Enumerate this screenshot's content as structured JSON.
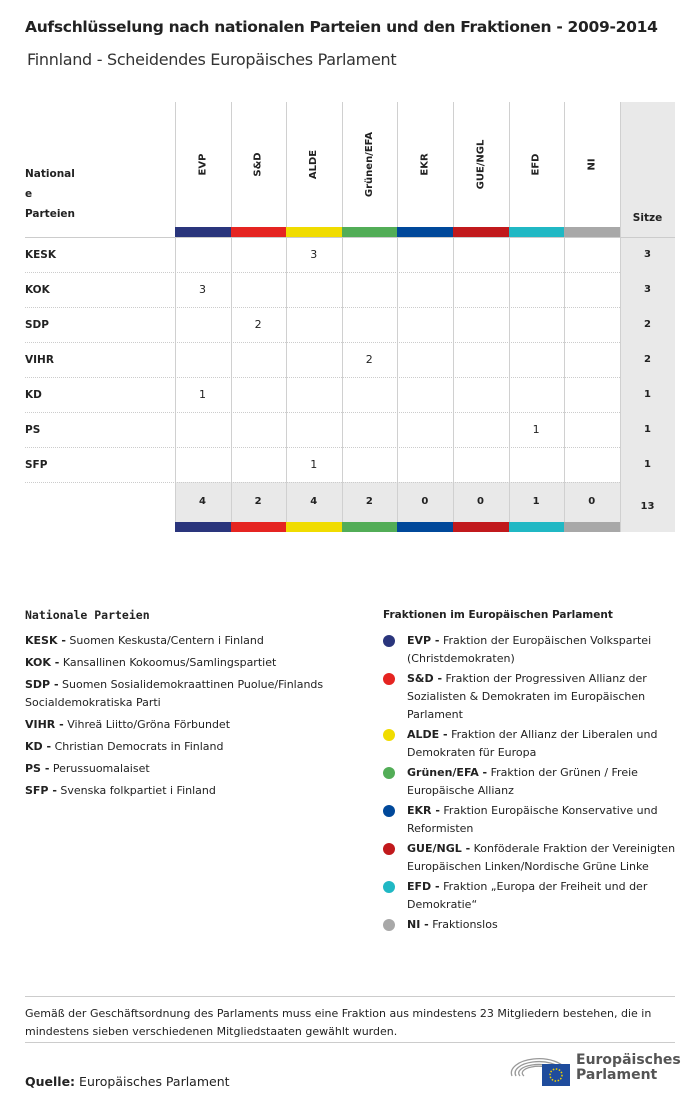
{
  "title": "Aufschlüsselung nach nationalen Parteien und den Fraktionen - 2009-2014",
  "subtitle": "Finnland - Scheidendes Europäisches Parlament",
  "table": {
    "row_header": "Nationale Parteien",
    "row_header_lines": [
      "National",
      "e",
      "Parteien"
    ],
    "seats_header": "Sitze",
    "groups": [
      {
        "name": "EVP",
        "color": "#2a357c"
      },
      {
        "name": "S&D",
        "color": "#e52421"
      },
      {
        "name": "ALDE",
        "color": "#f0dc00"
      },
      {
        "name": "Grünen/EFA",
        "color": "#52ad57"
      },
      {
        "name": "EKR",
        "color": "#00489a"
      },
      {
        "name": "GUE/NGL",
        "color": "#c1191c"
      },
      {
        "name": "EFD",
        "color": "#20b8c4"
      },
      {
        "name": "NI",
        "color": "#a8a8a8"
      }
    ],
    "rows": [
      {
        "party": "KESK",
        "values": [
          "",
          "",
          "3",
          "",
          "",
          "",
          "",
          ""
        ],
        "total": "3"
      },
      {
        "party": "KOK",
        "values": [
          "3",
          "",
          "",
          "",
          "",
          "",
          "",
          ""
        ],
        "total": "3"
      },
      {
        "party": "SDP",
        "values": [
          "",
          "2",
          "",
          "",
          "",
          "",
          "",
          ""
        ],
        "total": "2"
      },
      {
        "party": "VIHR",
        "values": [
          "",
          "",
          "",
          "2",
          "",
          "",
          "",
          ""
        ],
        "total": "2"
      },
      {
        "party": "KD",
        "values": [
          "1",
          "",
          "",
          "",
          "",
          "",
          "",
          ""
        ],
        "total": "1"
      },
      {
        "party": "PS",
        "values": [
          "",
          "",
          "",
          "",
          "",
          "",
          "1",
          ""
        ],
        "total": "1"
      },
      {
        "party": "SFP",
        "values": [
          "",
          "",
          "1",
          "",
          "",
          "",
          "",
          ""
        ],
        "total": "1"
      }
    ],
    "totals": [
      "4",
      "2",
      "4",
      "2",
      "0",
      "0",
      "1",
      "0"
    ],
    "grand_total": "13"
  },
  "national_legend": {
    "title": "Nationale Parteien",
    "items": [
      {
        "abbr": "KESK -",
        "name": "Suomen Keskusta/Centern i Finland"
      },
      {
        "abbr": "KOK -",
        "name": "Kansallinen Kokoomus/Samlingspartiet"
      },
      {
        "abbr": "SDP -",
        "name": "Suomen Sosialidemokraattinen Puolue/Finlands Socialdemokratiska Parti"
      },
      {
        "abbr": "VIHR -",
        "name": "Vihreä Liitto/Gröna Förbundet"
      },
      {
        "abbr": "KD -",
        "name": "Christian Democrats in Finland"
      },
      {
        "abbr": "PS -",
        "name": "Perussuomalaiset"
      },
      {
        "abbr": "SFP -",
        "name": "Svenska folkpartiet i Finland"
      }
    ]
  },
  "group_legend": {
    "title": "Fraktionen im Europäischen Parlament",
    "items": [
      {
        "abbr": "EVP -",
        "name": "Fraktion der Europäischen Volkspartei (Christdemokraten)",
        "color": "#2a357c"
      },
      {
        "abbr": "S&D -",
        "name": "Fraktion der Progressiven Allianz der Sozialisten & Demokraten im Europäischen Parlament",
        "color": "#e52421"
      },
      {
        "abbr": "ALDE -",
        "name": "Fraktion der Allianz der Liberalen und Demokraten für Europa",
        "color": "#f0dc00"
      },
      {
        "abbr": "Grünen/EFA -",
        "name": "Fraktion der Grünen / Freie Europäische Allianz",
        "color": "#52ad57"
      },
      {
        "abbr": "EKR -",
        "name": "Fraktion Europäische Konservative und Reformisten",
        "color": "#00489a"
      },
      {
        "abbr": "GUE/NGL -",
        "name": "Konföderale Fraktion der Vereinigten Europäischen Linken/Nordische Grüne Linke",
        "color": "#c1191c"
      },
      {
        "abbr": "EFD -",
        "name": "Fraktion „Europa der Freiheit und der Demokratie“",
        "color": "#20b8c4"
      },
      {
        "abbr": "NI -",
        "name": "Fraktionslos",
        "color": "#a8a8a8"
      }
    ]
  },
  "note": "Gemäß der Geschäftsordnung des Parlaments muss eine Fraktion aus mindestens 23 Mitgliedern bestehen, die in mindestens sieben verschiedenen Mitgliedstaaten gewählt wurden.",
  "source": {
    "label": "Quelle:",
    "value": "Europäisches Parlament"
  },
  "logo": {
    "line1": "Europäisches",
    "line2": "Parlament"
  }
}
